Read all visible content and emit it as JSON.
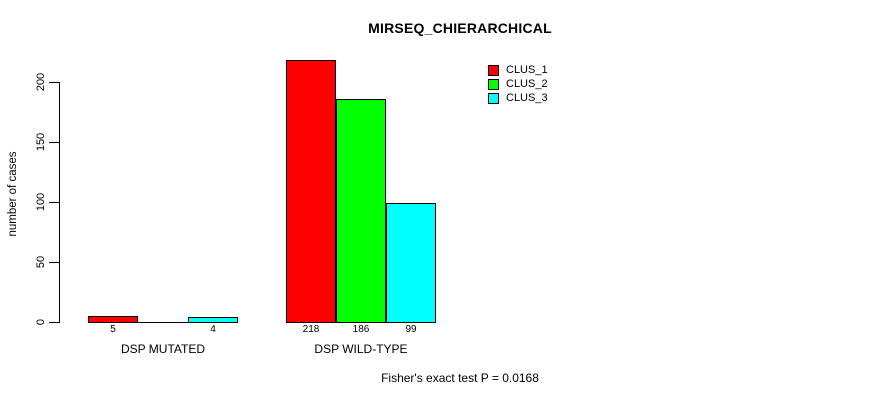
{
  "chart_data": {
    "type": "bar",
    "title": "MIRSEQ_CHIERARCHICAL",
    "ylabel": "number of cases",
    "xlabel": "",
    "ylim": [
      0,
      200
    ],
    "yticks": [
      0,
      50,
      100,
      150,
      200
    ],
    "grid": false,
    "legend_position": "top-right",
    "categories": [
      "DSP MUTATED",
      "DSP WILD-TYPE"
    ],
    "series": [
      {
        "name": "CLUS_1",
        "color": "#ff0000",
        "values": [
          5,
          218
        ]
      },
      {
        "name": "CLUS_2",
        "color": "#00ff00",
        "values": [
          0,
          186
        ]
      },
      {
        "name": "CLUS_3",
        "color": "#00ffff",
        "values": [
          4,
          99
        ]
      }
    ],
    "bar_labels": [
      [
        "5",
        "",
        "4"
      ],
      [
        "218",
        "186",
        "99"
      ]
    ],
    "annotation": "Fisher's exact test P = 0.0168"
  },
  "colors": {
    "background": "#ffffff",
    "axis": "#000000",
    "text": "#000000",
    "bar_border": "#000000"
  }
}
